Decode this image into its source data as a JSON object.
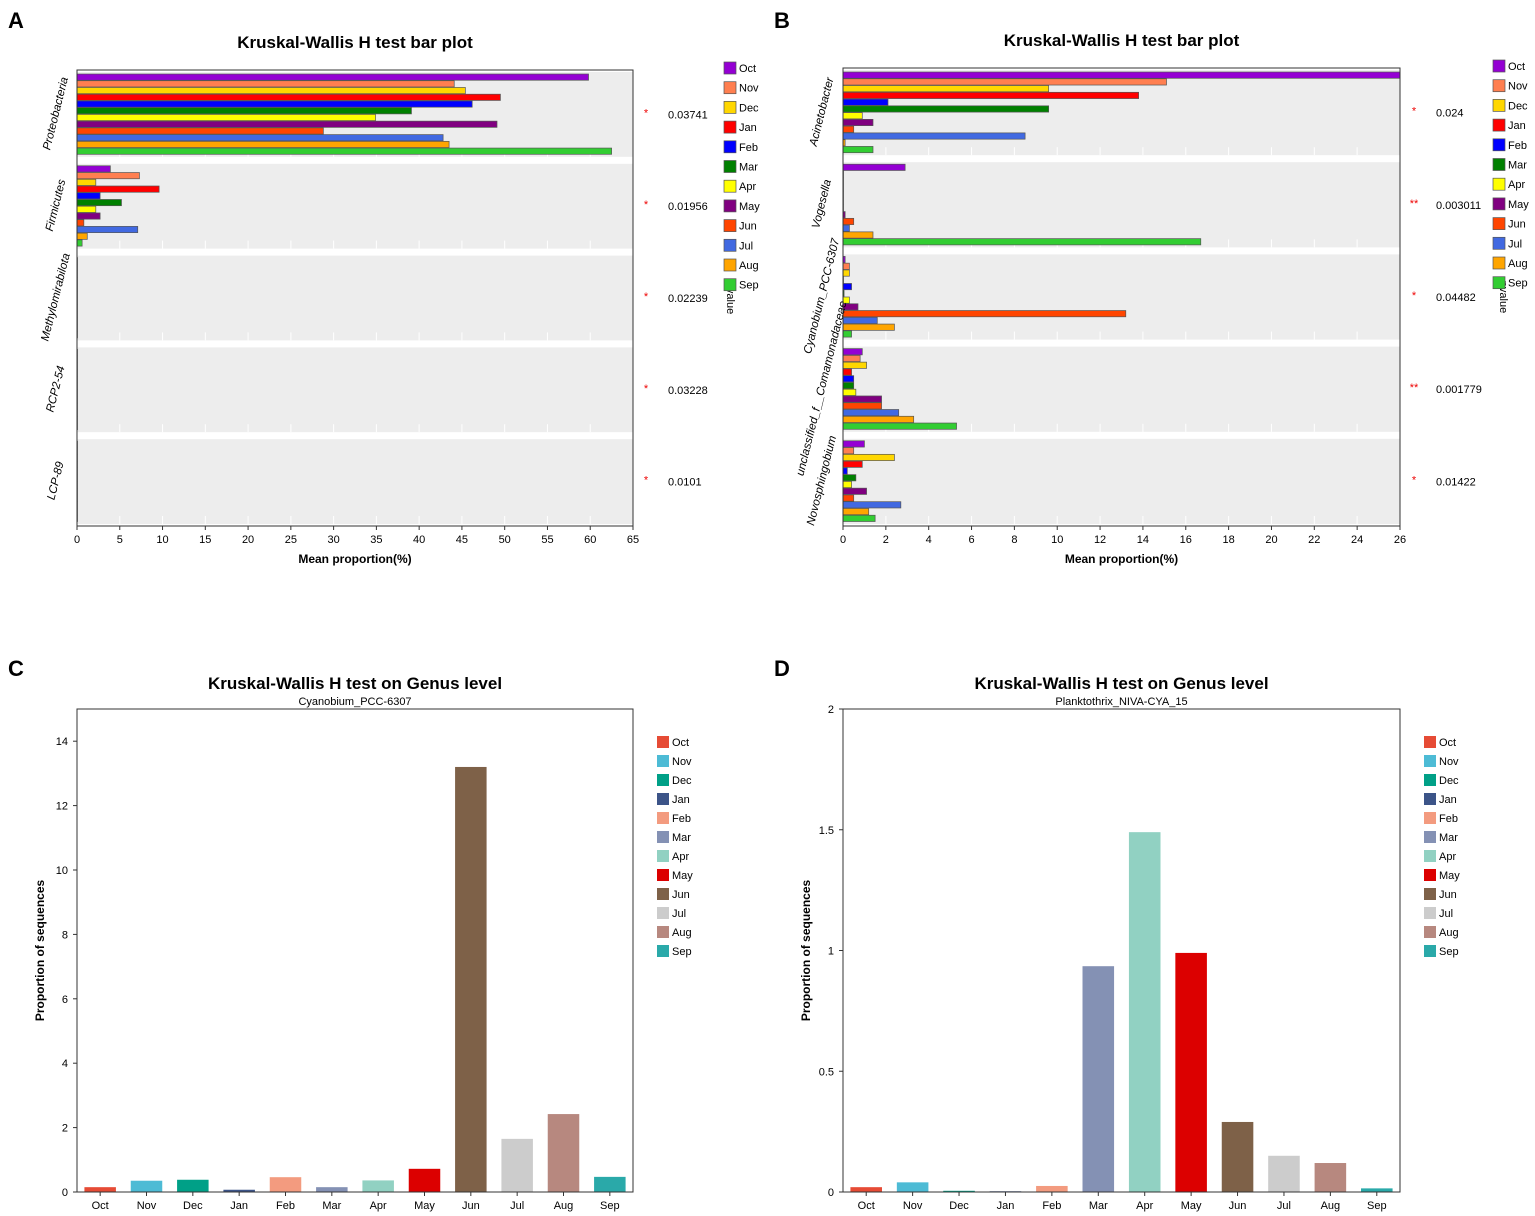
{
  "months": [
    "Oct",
    "Nov",
    "Dec",
    "Jan",
    "Feb",
    "Mar",
    "Apr",
    "May",
    "Jun",
    "Jul",
    "Aug",
    "Sep"
  ],
  "chart_data": [
    {
      "panel": "A",
      "type": "bar",
      "orientation": "horizontal",
      "title": "Kruskal-Wallis H test bar plot",
      "xlabel": "Mean proportion(%)",
      "pvalue_label": "pvalue",
      "xlim": [
        0,
        65
      ],
      "xticks": [
        0,
        5,
        10,
        15,
        20,
        25,
        30,
        35,
        40,
        45,
        50,
        55,
        60,
        65
      ],
      "legend_position": "right",
      "colors": [
        "#9400D3",
        "#FF7F50",
        "#FFD700",
        "#FF0000",
        "#0000FF",
        "#008000",
        "#FFFF00",
        "#800080",
        "#FF4500",
        "#4169E1",
        "#FFA500",
        "#32CD32"
      ],
      "categories": [
        "Proteobacteria",
        "Firmicutes",
        "Methylomirabilota",
        "RCP2-54",
        "LCP-89"
      ],
      "significance": [
        "*",
        "*",
        "*",
        "*",
        "*"
      ],
      "pvalues": [
        "0.03741",
        "0.01956",
        "0.02239",
        "0.03228",
        "0.0101"
      ],
      "values": [
        [
          59.8,
          44.1,
          45.4,
          49.5,
          46.2,
          39.1,
          34.9,
          49.1,
          28.8,
          42.8,
          43.5,
          62.5
        ],
        [
          3.9,
          7.3,
          2.2,
          9.6,
          2.7,
          5.2,
          2.2,
          2.7,
          0.8,
          7.1,
          1.2,
          0.6
        ],
        [
          0.05,
          0.05,
          0.05,
          0.05,
          0.05,
          0.05,
          0.05,
          0.05,
          0.05,
          0.05,
          0.05,
          0.05
        ],
        [
          0.03,
          0.03,
          0.03,
          0.03,
          0.03,
          0.03,
          0.03,
          0.03,
          0.03,
          0.03,
          0.03,
          0.03
        ],
        [
          0.02,
          0.02,
          0.02,
          0.02,
          0.02,
          0.02,
          0.02,
          0.02,
          0.02,
          0.02,
          0.02,
          0.02
        ]
      ]
    },
    {
      "panel": "B",
      "type": "bar",
      "orientation": "horizontal",
      "title": "Kruskal-Wallis H test bar plot",
      "xlabel": "Mean proportion(%)",
      "pvalue_label": "pvalue",
      "xlim": [
        0,
        26
      ],
      "xticks": [
        0,
        2,
        4,
        6,
        8,
        10,
        12,
        14,
        16,
        18,
        20,
        22,
        24,
        26
      ],
      "legend_position": "right",
      "colors": [
        "#9400D3",
        "#FF7F50",
        "#FFD700",
        "#FF0000",
        "#0000FF",
        "#008000",
        "#FFFF00",
        "#800080",
        "#FF4500",
        "#4169E1",
        "#FFA500",
        "#32CD32"
      ],
      "categories": [
        "Acinetobacter",
        "Vogesella",
        "Cyanobium_PCC-6307",
        "unclassified_f__Comamonadaceae",
        "Novosphingobium"
      ],
      "significance": [
        "*",
        "**",
        "*",
        "**",
        "*"
      ],
      "pvalues": [
        "0.024",
        "0.003011",
        "0.04482",
        "0.001779",
        "0.01422"
      ],
      "values": [
        [
          26,
          15.1,
          9.6,
          13.8,
          2.1,
          9.6,
          0.9,
          1.4,
          0.5,
          8.5,
          0.1,
          1.4
        ],
        [
          2.9,
          0.02,
          0.02,
          0.02,
          0.02,
          0.02,
          0.02,
          0.1,
          0.5,
          0.3,
          1.4,
          16.7
        ],
        [
          0.1,
          0.3,
          0.3,
          0.02,
          0.4,
          0.05,
          0.3,
          0.7,
          13.2,
          1.6,
          2.4,
          0.4
        ],
        [
          0.9,
          0.8,
          1.1,
          0.4,
          0.5,
          0.5,
          0.6,
          1.8,
          1.8,
          2.6,
          3.3,
          5.3
        ],
        [
          1.0,
          0.5,
          2.4,
          0.9,
          0.2,
          0.6,
          0.4,
          1.1,
          0.5,
          2.7,
          1.2,
          1.5
        ]
      ]
    },
    {
      "panel": "C",
      "type": "bar",
      "title": "Kruskal-Wallis H test on Genus level",
      "subtitle": "Cyanobium_PCC-6307",
      "ylabel": "Proportion of sequences",
      "ylim": [
        0,
        15
      ],
      "yticks": [
        "0",
        "2",
        "4",
        "6",
        "8",
        "10",
        "12",
        "14"
      ],
      "ytick_values": [
        0,
        2,
        4,
        6,
        8,
        10,
        12,
        14
      ],
      "legend_position": "right",
      "colors": [
        "#E64B35",
        "#4DBBD5",
        "#00A087",
        "#3C5488",
        "#F39B7F",
        "#8491B4",
        "#91D1C2",
        "#DC0000",
        "#7E6148",
        "#CCCCCC",
        "#B7887F",
        "#2AA9A9"
      ],
      "values": [
        0.15,
        0.35,
        0.38,
        0.07,
        0.46,
        0.15,
        0.36,
        0.72,
        13.2,
        1.65,
        2.42,
        0.47
      ]
    },
    {
      "panel": "D",
      "type": "bar",
      "title": "Kruskal-Wallis H test on Genus level",
      "subtitle": "Planktothrix_NIVA-CYA_15",
      "ylabel": "Proportion of sequences",
      "ylim": [
        0,
        2
      ],
      "yticks": [
        "0",
        "0.5",
        "1",
        "1.5",
        "2"
      ],
      "ytick_values": [
        0,
        0.5,
        1,
        1.5,
        2
      ],
      "legend_position": "right",
      "colors": [
        "#E64B35",
        "#4DBBD5",
        "#00A087",
        "#3C5488",
        "#F39B7F",
        "#8491B4",
        "#91D1C2",
        "#DC0000",
        "#7E6148",
        "#CCCCCC",
        "#B7887F",
        "#2AA9A9"
      ],
      "values": [
        0.02,
        0.04,
        0.005,
        0.003,
        0.025,
        0.935,
        1.49,
        0.99,
        0.29,
        0.15,
        0.12,
        0.015
      ]
    }
  ]
}
